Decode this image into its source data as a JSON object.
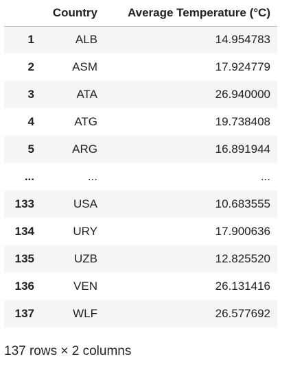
{
  "table": {
    "columns": [
      "",
      "Country",
      "Average Temperature (°C)"
    ],
    "rows": [
      {
        "index": "1",
        "country": "ALB",
        "temp": "14.954783"
      },
      {
        "index": "2",
        "country": "ASM",
        "temp": "17.924779"
      },
      {
        "index": "3",
        "country": "ATA",
        "temp": "26.940000"
      },
      {
        "index": "4",
        "country": "ATG",
        "temp": "19.738408"
      },
      {
        "index": "5",
        "country": "ARG",
        "temp": "16.891944"
      },
      {
        "index": "...",
        "country": "...",
        "temp": "..."
      },
      {
        "index": "133",
        "country": "USA",
        "temp": "10.683555"
      },
      {
        "index": "134",
        "country": "URY",
        "temp": "17.900636"
      },
      {
        "index": "135",
        "country": "UZB",
        "temp": "12.825520"
      },
      {
        "index": "136",
        "country": "VEN",
        "temp": "26.131416"
      },
      {
        "index": "137",
        "country": "WLF",
        "temp": "26.577692"
      }
    ]
  },
  "summary": "137 rows × 2 columns"
}
